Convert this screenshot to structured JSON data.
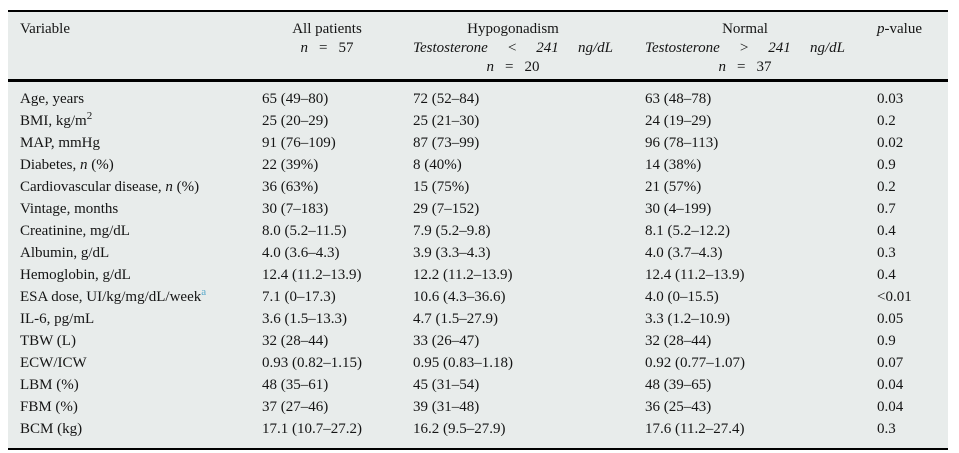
{
  "page": {
    "background": "#ffffff"
  },
  "table": {
    "colors": {
      "background": "#e8eceb",
      "rule": "#000000",
      "text": "#151515",
      "footnote_marker": "#55a7ca"
    },
    "header": {
      "variable": "Variable",
      "all_patients": {
        "title": "All patients",
        "n_label": "n",
        "equals": "=",
        "n_value": "57"
      },
      "hypogonadism": {
        "title": "Hypogonadism",
        "criteria": {
          "name": "Testosterone",
          "op": "<",
          "value": "241",
          "unit": "ng/dL"
        },
        "n_label": "n",
        "equals": "=",
        "n_value": "20"
      },
      "normal": {
        "title": "Normal",
        "criteria": {
          "name": "Testosterone",
          "op": ">",
          "value": "241",
          "unit": "ng/dL"
        },
        "n_label": "n",
        "equals": "=",
        "n_value": "37"
      },
      "p_value": {
        "italic": "p",
        "rest": "-value"
      }
    },
    "rows": [
      {
        "variable": [
          {
            "t": "Age, years"
          }
        ],
        "all": "65 (49–80)",
        "hypogonadism": "72 (52–84)",
        "normal": "63 (48–78)",
        "p": "0.03"
      },
      {
        "variable": [
          {
            "t": "BMI, kg/m"
          },
          {
            "t": "2",
            "fmt": "sup"
          }
        ],
        "all": "25 (20–29)",
        "hypogonadism": "25 (21–30)",
        "normal": "24 (19–29)",
        "p": "0.2"
      },
      {
        "variable": [
          {
            "t": "MAP, mmHg"
          }
        ],
        "all": "91 (76–109)",
        "hypogonadism": "87 (73–99)",
        "normal": "96 (78–113)",
        "p": "0.02"
      },
      {
        "variable": [
          {
            "t": "Diabetes, "
          },
          {
            "t": "n",
            "fmt": "i"
          },
          {
            "t": " (%)"
          }
        ],
        "all": "22 (39%)",
        "hypogonadism": "8 (40%)",
        "normal": "14 (38%)",
        "p": "0.9"
      },
      {
        "variable": [
          {
            "t": "Cardiovascular disease, "
          },
          {
            "t": "n",
            "fmt": "i"
          },
          {
            "t": " (%)"
          }
        ],
        "all": "36 (63%)",
        "hypogonadism": "15 (75%)",
        "normal": "21 (57%)",
        "p": "0.2"
      },
      {
        "variable": [
          {
            "t": "Vintage, months"
          }
        ],
        "all": "30 (7–183)",
        "hypogonadism": "29 (7–152)",
        "normal": "30 (4–199)",
        "p": "0.7"
      },
      {
        "variable": [
          {
            "t": "Creatinine, mg/dL"
          }
        ],
        "all": "8.0 (5.2–11.5)",
        "hypogonadism": "7.9 (5.2–9.8)",
        "normal": "8.1 (5.2–12.2)",
        "p": "0.4"
      },
      {
        "variable": [
          {
            "t": "Albumin, g/dL"
          }
        ],
        "all": "4.0 (3.6–4.3)",
        "hypogonadism": "3.9 (3.3–4.3)",
        "normal": "4.0 (3.7–4.3)",
        "p": "0.3"
      },
      {
        "variable": [
          {
            "t": "Hemoglobin, g/dL"
          }
        ],
        "all": "12.4 (11.2–13.9)",
        "hypogonadism": "12.2 (11.2–13.9)",
        "normal": "12.4 (11.2–13.9)",
        "p": "0.4"
      },
      {
        "variable": [
          {
            "t": "ESA dose, UI/kg/mg/dL/week"
          },
          {
            "t": "a",
            "fmt": "note"
          }
        ],
        "all": "7.1 (0–17.3)",
        "hypogonadism": "10.6 (4.3–36.6)",
        "normal": "4.0 (0–15.5)",
        "p": "<0.01"
      },
      {
        "variable": [
          {
            "t": "IL-6, pg/mL"
          }
        ],
        "all": "3.6 (1.5–13.3)",
        "hypogonadism": "4.7 (1.5–27.9)",
        "normal": "3.3 (1.2–10.9)",
        "p": "0.05"
      },
      {
        "variable": [
          {
            "t": "TBW (L)"
          }
        ],
        "all": "32 (28–44)",
        "hypogonadism": "33 (26–47)",
        "normal": "32 (28–44)",
        "p": "0.9"
      },
      {
        "variable": [
          {
            "t": "ECW/ICW"
          }
        ],
        "all": "0.93 (0.82–1.15)",
        "hypogonadism": "0.95 (0.83–1.18)",
        "normal": "0.92 (0.77–1.07)",
        "p": "0.07"
      },
      {
        "variable": [
          {
            "t": "LBM (%)"
          }
        ],
        "all": "48 (35–61)",
        "hypogonadism": "45 (31–54)",
        "normal": "48 (39–65)",
        "p": "0.04"
      },
      {
        "variable": [
          {
            "t": "FBM (%)"
          }
        ],
        "all": "37 (27–46)",
        "hypogonadism": "39 (31–48)",
        "normal": "36 (25–43)",
        "p": "0.04"
      },
      {
        "variable": [
          {
            "t": "BCM (kg)"
          }
        ],
        "all": "17.1 (10.7–27.2)",
        "hypogonadism": "16.2 (9.5–27.9)",
        "normal": "17.6 (11.2–27.4)",
        "p": "0.3"
      }
    ]
  }
}
